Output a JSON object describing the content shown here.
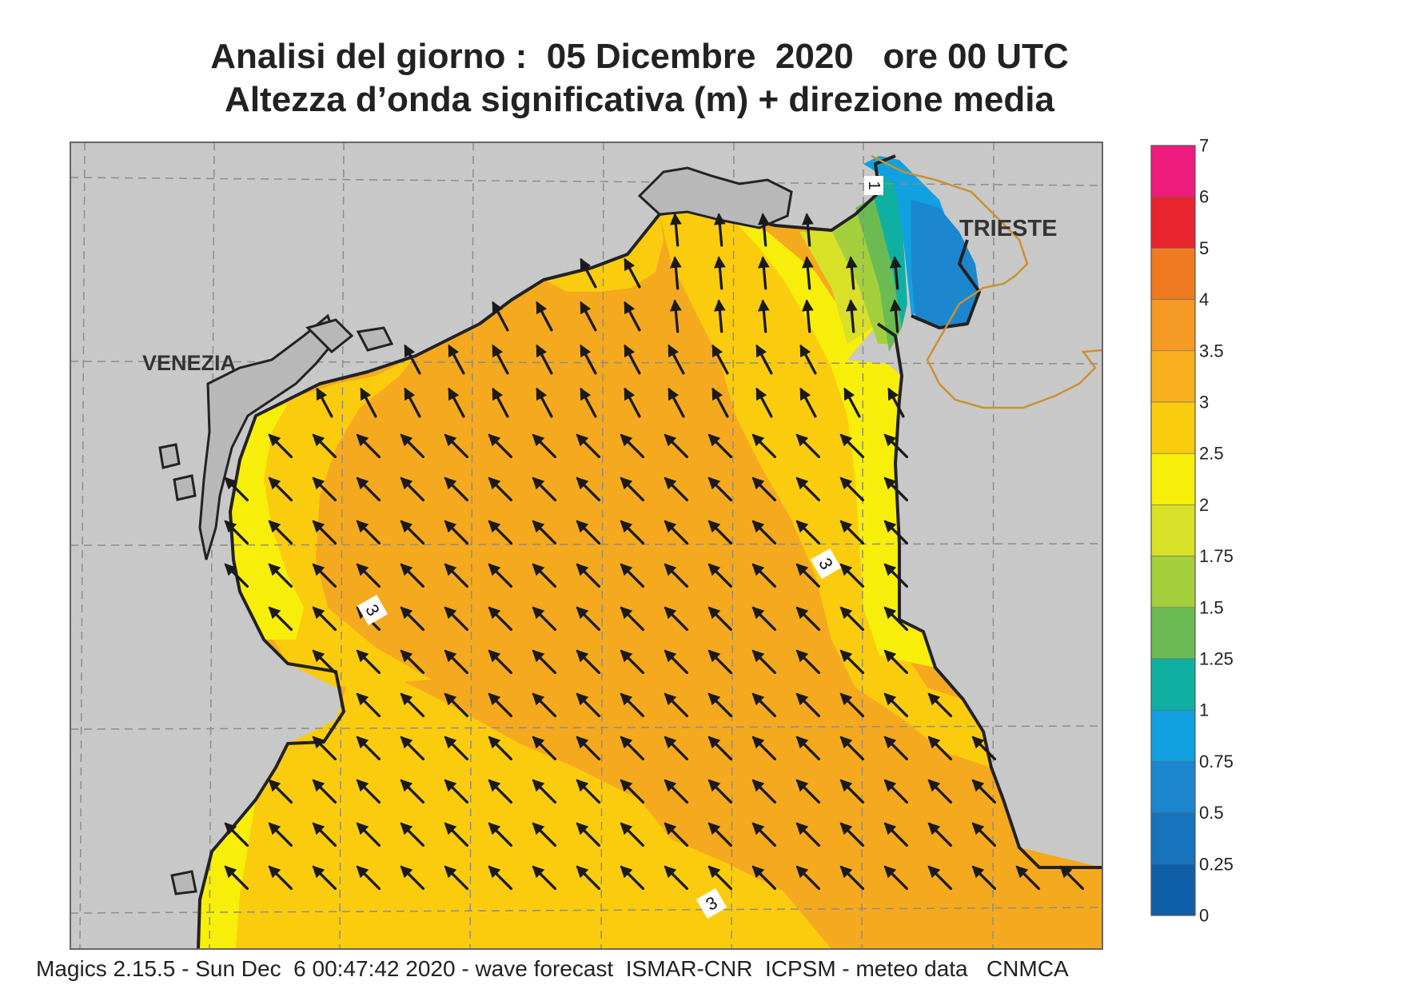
{
  "title": {
    "line1": "Analisi del giorno :  05 Dicembre  2020   ore 00 UTC",
    "line2": "Altezza d’onda significativa (m) + direzione media"
  },
  "map": {
    "places": [
      "VENEZIA",
      "TRIESTE"
    ],
    "contour_labels": [
      "3",
      "3",
      "3",
      "1"
    ],
    "arrow_direction": "north-west",
    "colors": {
      "land": "#c8c8c8",
      "land_dark": "#b8b8b8",
      "coast": "#222222",
      "border": "#c8922e",
      "grid": "#8c8c8c",
      "sea_3_3_5": "#f5a91e",
      "sea_2_5_3": "#fbcc0e",
      "sea_2_2_5": "#f7ee0a",
      "sea_1_75_2": "#d8e028",
      "sea_1_5_1_75": "#a4cf3c",
      "sea_1_25_1_5": "#6bbb52",
      "sea_1_1_25": "#0fb0a2",
      "sea_0_75_1": "#11a0e0",
      "sea_0_5_0_75": "#1c86cf"
    }
  },
  "legend": {
    "labels": [
      "7",
      "6",
      "5",
      "4",
      "3.5",
      "3",
      "2.5",
      "2",
      "1.75",
      "1.5",
      "1.25",
      "1",
      "0.75",
      "0.5",
      "0.25",
      "0"
    ],
    "colors": [
      "#ee1a7d",
      "#e8242d",
      "#f07a22",
      "#f49a25",
      "#f8b01f",
      "#fbcc0e",
      "#f7ee0a",
      "#d8e028",
      "#a4cf3c",
      "#6bbb52",
      "#0fb0a2",
      "#11a0e0",
      "#1c86cf",
      "#1673bc",
      "#0f5fa8"
    ]
  },
  "footer": "Magics 2.15.5 - Sun Dec  6 00:47:42 2020 - wave forecast  ISMAR-CNR  ICPSM - meteo data   CNMCA"
}
